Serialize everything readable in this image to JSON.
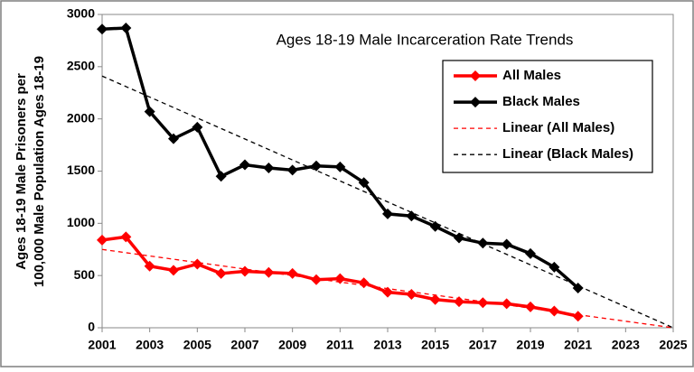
{
  "chart_data": {
    "type": "line",
    "title": "Ages 18-19 Male Incarceration  Rate Trends",
    "ylabel": [
      "Ages 18-19 Male Prisoners per",
      "100,000 Male Population Ages 18-19"
    ],
    "x": [
      2001,
      2002,
      2003,
      2004,
      2005,
      2006,
      2007,
      2008,
      2009,
      2010,
      2011,
      2012,
      2013,
      2014,
      2015,
      2016,
      2017,
      2018,
      2019,
      2020,
      2021
    ],
    "series": [
      {
        "name": "All Males",
        "color": "#ff0000",
        "style": "solid",
        "markers": true,
        "values": [
          840,
          870,
          590,
          550,
          610,
          520,
          540,
          530,
          520,
          460,
          470,
          430,
          340,
          320,
          270,
          250,
          240,
          230,
          200,
          160,
          110
        ]
      },
      {
        "name": "Black Males",
        "color": "#000000",
        "style": "solid",
        "markers": true,
        "values": [
          2860,
          2870,
          2070,
          1810,
          1920,
          1450,
          1560,
          1530,
          1510,
          1550,
          1540,
          1390,
          1090,
          1070,
          970,
          860,
          810,
          800,
          710,
          580,
          380
        ]
      },
      {
        "name": "Linear (All Males)",
        "color": "#ff0000",
        "style": "dashed",
        "markers": false,
        "x": [
          2001,
          2025
        ],
        "values": [
          750,
          0
        ]
      },
      {
        "name": "Linear (Black Males)",
        "color": "#000000",
        "style": "dashed",
        "markers": false,
        "x": [
          2001,
          2025
        ],
        "values": [
          2410,
          0
        ]
      }
    ],
    "xlim": [
      2001,
      2025
    ],
    "xticks": [
      2001,
      2003,
      2005,
      2007,
      2009,
      2011,
      2013,
      2015,
      2017,
      2019,
      2021,
      2023,
      2025
    ],
    "ylim": [
      0,
      3000
    ],
    "yticks": [
      0,
      500,
      1000,
      1500,
      2000,
      2500,
      3000
    ],
    "grid": false,
    "legend": "top-right"
  }
}
